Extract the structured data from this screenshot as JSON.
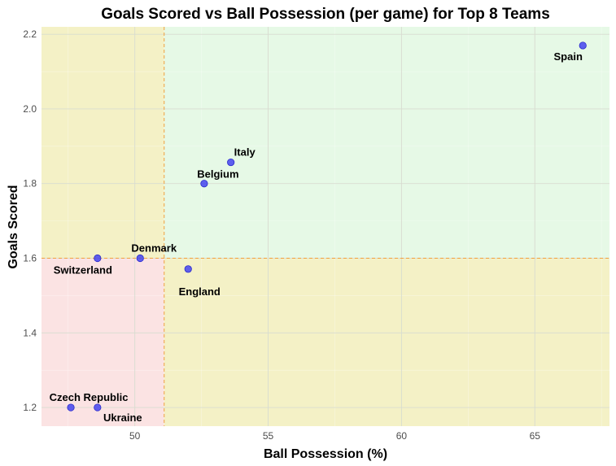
{
  "chart_data": {
    "type": "scatter",
    "title": "Goals Scored vs Ball Possession (per game) for Top 8 Teams",
    "xlabel": "Ball Possession (%)",
    "ylabel": "Goals Scored",
    "xlim": [
      46.5,
      67.8
    ],
    "ylim": [
      1.15,
      2.22
    ],
    "xticks": [
      50,
      55,
      60,
      65
    ],
    "yticks": [
      1.2,
      1.4,
      1.6,
      1.8,
      2.0,
      2.2
    ],
    "grid": true,
    "reference_lines": {
      "x": 51.1,
      "y": 1.6
    },
    "quadrant_colors": {
      "bottom_left": "#fbe3e3",
      "top_left": "#f4f1c6",
      "bottom_right": "#f4f1c6",
      "top_right": "#e6f9e6"
    },
    "point_color": "#4444ee",
    "reference_line_color": "#f0a040",
    "points": [
      {
        "label": "Spain",
        "x": 66.8,
        "y": 2.17
      },
      {
        "label": "Italy",
        "x": 53.6,
        "y": 1.857
      },
      {
        "label": "Belgium",
        "x": 52.6,
        "y": 1.8
      },
      {
        "label": "Denmark",
        "x": 50.2,
        "y": 1.6
      },
      {
        "label": "Switzerland",
        "x": 48.6,
        "y": 1.6
      },
      {
        "label": "England",
        "x": 52.0,
        "y": 1.571
      },
      {
        "label": "Czech Republic",
        "x": 47.6,
        "y": 1.2
      },
      {
        "label": "Ukraine",
        "x": 48.6,
        "y": 1.2
      }
    ]
  }
}
